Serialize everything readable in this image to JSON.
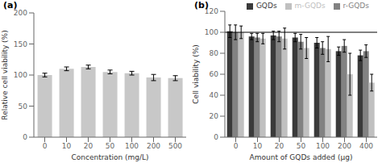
{
  "chart_data": [
    {
      "type": "bar",
      "title": "(a)",
      "xlabel": "Concentration (mg/L)",
      "ylabel": "Relative cell viability (%)",
      "categories": [
        "0",
        "10",
        "20",
        "50",
        "100",
        "200",
        "500"
      ],
      "values": [
        100,
        110,
        113,
        105,
        103,
        96,
        95
      ],
      "errors": [
        3,
        3,
        3,
        3,
        3,
        5,
        4
      ],
      "color": "#c8c8c8",
      "ylim": [
        0,
        200
      ],
      "yticks": [
        0,
        50,
        100,
        150,
        200
      ]
    },
    {
      "type": "bar",
      "title": "(b)",
      "xlabel": "Amount of GQDs added (μg)",
      "ylabel": "Cell viability (%)",
      "categories": [
        "0",
        "10",
        "20",
        "50",
        "100",
        "200",
        "400"
      ],
      "series": [
        {
          "name": "GQDs",
          "color": "#3a3a3a",
          "values": [
            101,
            96,
            97,
            95,
            90,
            82,
            78
          ],
          "errors": [
            6,
            3,
            4,
            4,
            5,
            4,
            5
          ]
        },
        {
          "name": "r-GQDs",
          "color": "#828282",
          "values": [
            100,
            95,
            96,
            91,
            85,
            87,
            82
          ],
          "errors": [
            7,
            4,
            5,
            7,
            6,
            6,
            6
          ]
        },
        {
          "name": "m-GQDs",
          "color": "#c0c0c0",
          "values": [
            100,
            94,
            94,
            85,
            84,
            60,
            52
          ],
          "errors": [
            6,
            5,
            10,
            10,
            12,
            20,
            8
          ]
        }
      ],
      "ylim": [
        0,
        120
      ],
      "yticks": [
        0,
        20,
        40,
        60,
        80,
        100,
        120
      ],
      "hline": 100,
      "legend": "upper right"
    }
  ]
}
